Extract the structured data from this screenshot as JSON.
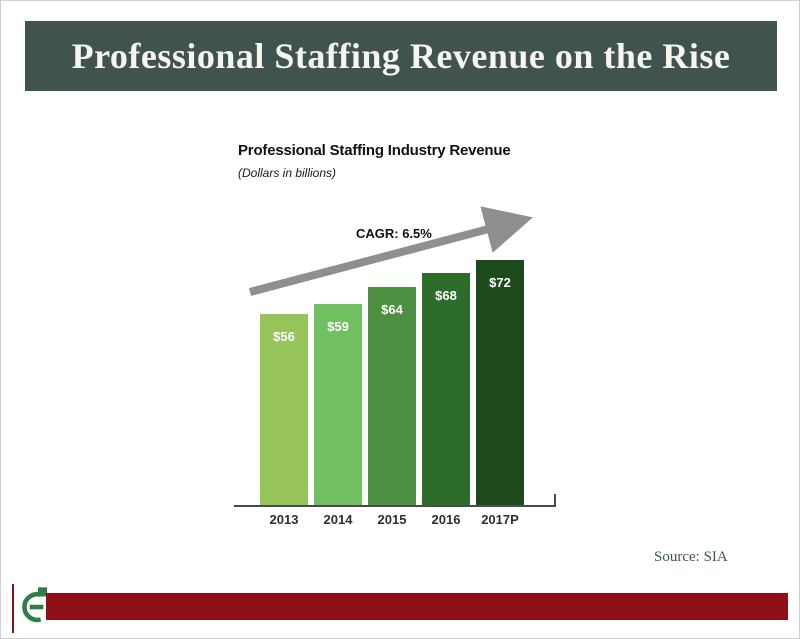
{
  "header": {
    "title": "Professional Staffing Revenue on the Rise"
  },
  "chart_data": {
    "type": "bar",
    "title": "Professional Staffing Industry Revenue",
    "subtitle": "(Dollars in billions)",
    "annotation": "CAGR: 6.5%",
    "categories": [
      "2013",
      "2014",
      "2015",
      "2016",
      "2017P"
    ],
    "values": [
      56,
      59,
      64,
      68,
      72
    ],
    "value_labels": [
      "$56",
      "$59",
      "$64",
      "$68",
      "$72"
    ],
    "bar_colors": [
      "#97c35b",
      "#70bf60",
      "#4d9042",
      "#2e6c2c",
      "#1e4b1e"
    ],
    "ylim": [
      0,
      75
    ],
    "grid": false,
    "legend": false,
    "xlabel": "",
    "ylabel": ""
  },
  "footer": {
    "source": "Source: SIA"
  },
  "colors": {
    "banner_bg": "#41534f",
    "banner_text": "#f7f5ef",
    "arrow": "#8f8f8f",
    "axis": "#4a4a4a",
    "bar_value_text": "#ffffff",
    "accent_bar": "#8e1016",
    "logo_green": "#2e7d4b",
    "source_text": "#3f5a4a"
  }
}
